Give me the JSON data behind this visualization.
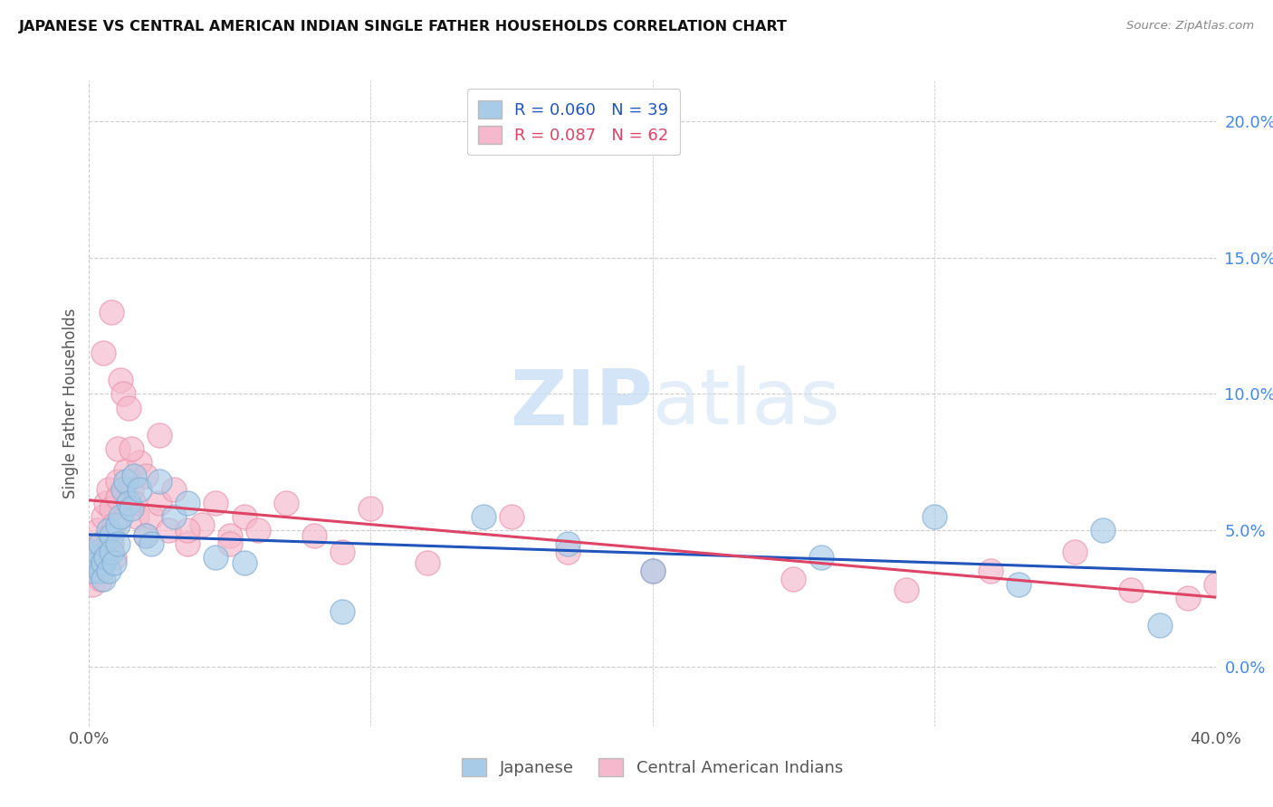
{
  "title": "JAPANESE VS CENTRAL AMERICAN INDIAN SINGLE FATHER HOUSEHOLDS CORRELATION CHART",
  "source": "Source: ZipAtlas.com",
  "ylabel": "Single Father Households",
  "legend_label_blue": "Japanese",
  "legend_label_pink": "Central American Indians",
  "blue_color": "#a8cce8",
  "blue_edge_color": "#80aad0",
  "pink_color": "#f5b8cc",
  "pink_edge_color": "#e890a8",
  "blue_line_color": "#2255bb",
  "pink_line_color": "#dd4466",
  "right_axis_color": "#4488ee",
  "grid_color": "#cccccc",
  "background_color": "#ffffff",
  "watermark_color": "#ddeeff",
  "japanese_x": [
    0.001,
    0.002,
    0.003,
    0.003,
    0.004,
    0.004,
    0.005,
    0.005,
    0.006,
    0.007,
    0.007,
    0.008,
    0.008,
    0.009,
    0.01,
    0.01,
    0.011,
    0.012,
    0.013,
    0.014,
    0.015,
    0.016,
    0.018,
    0.02,
    0.022,
    0.025,
    0.03,
    0.035,
    0.045,
    0.055,
    0.09,
    0.14,
    0.17,
    0.2,
    0.26,
    0.3,
    0.33,
    0.36,
    0.38
  ],
  "japanese_y": [
    0.035,
    0.04,
    0.038,
    0.042,
    0.035,
    0.045,
    0.038,
    0.032,
    0.04,
    0.05,
    0.035,
    0.048,
    0.042,
    0.038,
    0.052,
    0.045,
    0.055,
    0.065,
    0.068,
    0.06,
    0.058,
    0.07,
    0.065,
    0.048,
    0.045,
    0.068,
    0.055,
    0.06,
    0.04,
    0.038,
    0.02,
    0.055,
    0.045,
    0.035,
    0.04,
    0.055,
    0.03,
    0.05,
    0.015
  ],
  "central_american_x": [
    0.001,
    0.001,
    0.002,
    0.002,
    0.003,
    0.003,
    0.004,
    0.004,
    0.005,
    0.005,
    0.006,
    0.006,
    0.007,
    0.007,
    0.008,
    0.008,
    0.009,
    0.009,
    0.01,
    0.01,
    0.011,
    0.012,
    0.013,
    0.014,
    0.015,
    0.016,
    0.017,
    0.018,
    0.02,
    0.022,
    0.025,
    0.028,
    0.03,
    0.035,
    0.04,
    0.045,
    0.05,
    0.055,
    0.06,
    0.07,
    0.08,
    0.09,
    0.1,
    0.12,
    0.15,
    0.17,
    0.2,
    0.25,
    0.29,
    0.32,
    0.35,
    0.37,
    0.39,
    0.4,
    0.005,
    0.008,
    0.01,
    0.015,
    0.02,
    0.025,
    0.035,
    0.05
  ],
  "central_american_y": [
    0.038,
    0.03,
    0.042,
    0.035,
    0.04,
    0.05,
    0.045,
    0.032,
    0.055,
    0.038,
    0.06,
    0.042,
    0.048,
    0.065,
    0.045,
    0.058,
    0.052,
    0.04,
    0.068,
    0.062,
    0.105,
    0.1,
    0.072,
    0.095,
    0.065,
    0.06,
    0.055,
    0.075,
    0.048,
    0.055,
    0.06,
    0.05,
    0.065,
    0.045,
    0.052,
    0.06,
    0.048,
    0.055,
    0.05,
    0.06,
    0.048,
    0.042,
    0.058,
    0.038,
    0.055,
    0.042,
    0.035,
    0.032,
    0.028,
    0.035,
    0.042,
    0.028,
    0.025,
    0.03,
    0.115,
    0.13,
    0.08,
    0.08,
    0.07,
    0.085,
    0.05,
    0.045
  ],
  "xlim": [
    0.0,
    0.4
  ],
  "ylim": [
    -0.022,
    0.215
  ],
  "xticks": [
    0.0,
    0.1,
    0.2,
    0.3,
    0.4
  ],
  "yticks_right": [
    0.0,
    0.05,
    0.1,
    0.15,
    0.2
  ],
  "ytick_labels_right": [
    "0.0%",
    "5.0%",
    "10.0%",
    "15.0%",
    "20.0%"
  ]
}
